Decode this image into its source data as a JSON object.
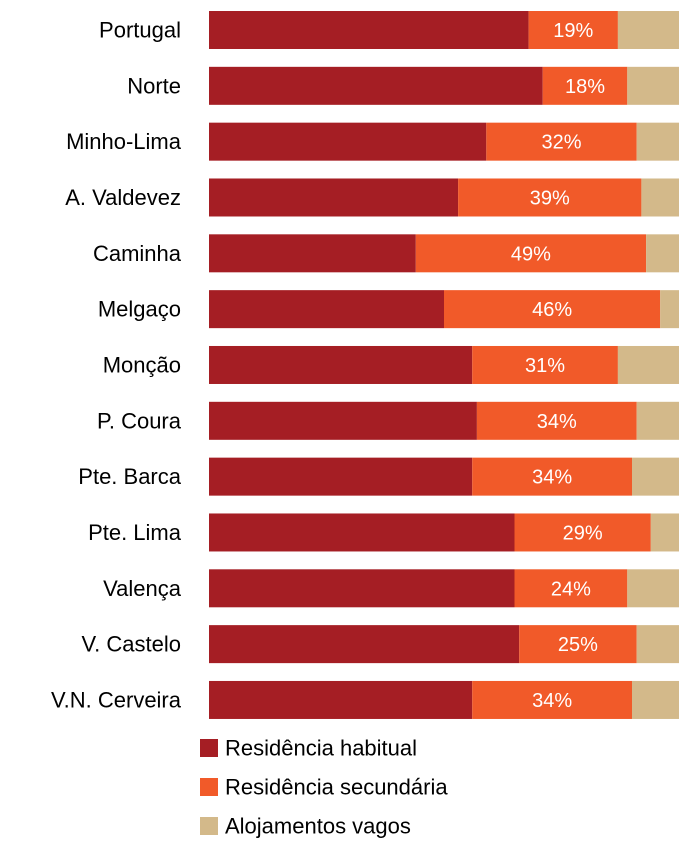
{
  "chart_data": {
    "type": "stacked-bar-horizontal",
    "categories": [
      "Portugal",
      "Norte",
      "Minho-Lima",
      "A. Valdevez",
      "Caminha",
      "Melgaço",
      "Monção",
      "P. Coura",
      "Pte. Barca",
      "Pte. Lima",
      "Valença",
      "V. Castelo",
      "V.N. Cerveira"
    ],
    "series": [
      {
        "name": "Residência habitual",
        "color": "#a51e24",
        "values": [
          68,
          71,
          59,
          53,
          44,
          50,
          56,
          57,
          56,
          65,
          65,
          66,
          56
        ]
      },
      {
        "name": "Residência secundária",
        "color": "#f15a29",
        "values": [
          19,
          18,
          32,
          39,
          49,
          46,
          31,
          34,
          34,
          29,
          24,
          25,
          34
        ],
        "value_labels": [
          "19%",
          "18%",
          "32%",
          "39%",
          "49%",
          "46%",
          "31%",
          "34%",
          "34%",
          "29%",
          "24%",
          "25%",
          "34%"
        ]
      },
      {
        "name": "Alojamentos vagos",
        "color": "#d3b98a",
        "values": [
          13,
          11,
          9,
          8,
          7,
          4,
          13,
          9,
          10,
          6,
          11,
          9,
          10
        ]
      }
    ],
    "xlim": [
      0,
      100
    ]
  }
}
